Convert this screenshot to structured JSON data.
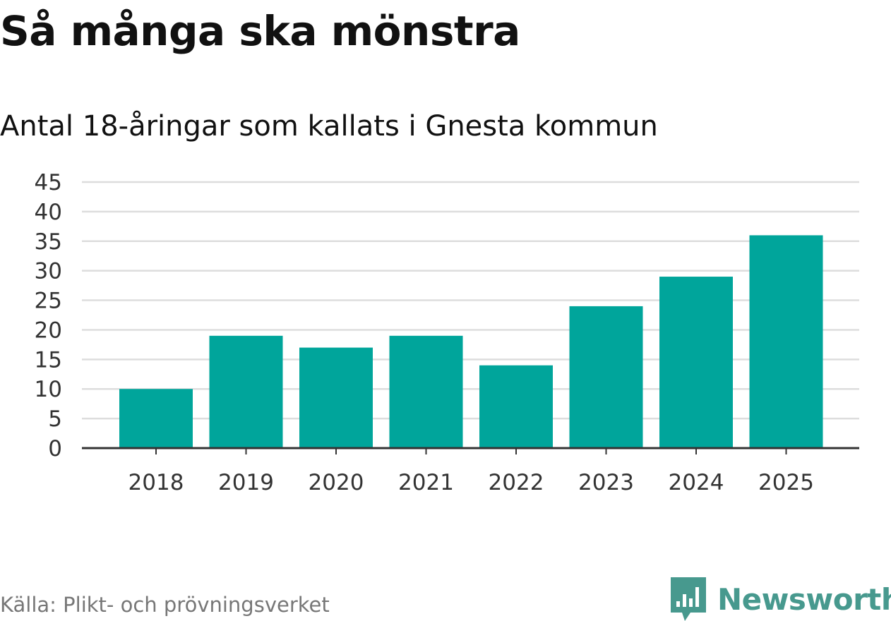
{
  "header": {
    "title": "Så många ska mönstra",
    "subtitle": "Antal 18-åringar som kallats i Gnesta kommun"
  },
  "footer": {
    "source": "Källa: Plikt- och prövningsverket",
    "brand": "Newsworthy",
    "brand_icon": "newsworthy-logo-icon"
  },
  "colors": {
    "bar": "#00a59b",
    "grid": "#dddddd",
    "axis": "#333333",
    "brand": "#47998e"
  },
  "chart_data": {
    "type": "bar",
    "title": "Så många ska mönstra",
    "subtitle": "Antal 18-åringar som kallats i Gnesta kommun",
    "categories": [
      "2018",
      "2019",
      "2020",
      "2021",
      "2022",
      "2023",
      "2024",
      "2025"
    ],
    "values": [
      10,
      19,
      17,
      19,
      14,
      24,
      29,
      36
    ],
    "xlabel": "",
    "ylabel": "",
    "ylim": [
      0,
      45
    ],
    "yticks": [
      0,
      5,
      10,
      15,
      20,
      25,
      30,
      35,
      40,
      45
    ],
    "grid": true,
    "legend": "none"
  }
}
